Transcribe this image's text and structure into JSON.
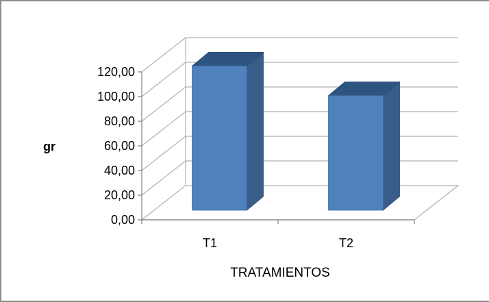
{
  "chart_data": {
    "type": "bar",
    "title": "",
    "xlabel": "TRATAMIENTOS",
    "ylabel": "gr",
    "categories": [
      "T1",
      "T2"
    ],
    "series": [
      {
        "values": [
          117.0,
          93.0
        ]
      }
    ],
    "ylim": [
      0,
      120
    ],
    "yticks": [
      "0,00",
      "20,00",
      "40,00",
      "60,00",
      "80,00",
      "100,00",
      "120,00"
    ],
    "grid": true,
    "legend": "none",
    "colors": {
      "bar_front": "#4f81bd",
      "bar_side": "#385d8a",
      "bar_top": "#2e5481",
      "gridline": "#b0b0b0",
      "axis": "#7f7f7f"
    }
  }
}
